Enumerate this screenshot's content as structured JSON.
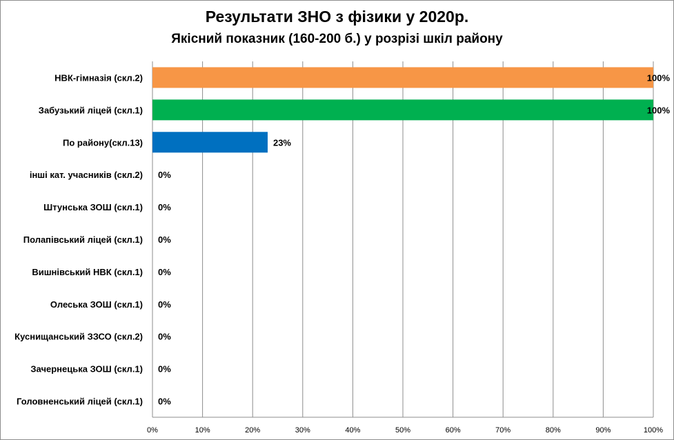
{
  "chart_data": {
    "type": "bar",
    "orientation": "horizontal",
    "title": "Результати  ЗНО з фізики у 2020р.",
    "subtitle": "Якісний показник (160-200  б.) у розрізі шкіл району",
    "categories": [
      "НВК-гімназія (скл.2)",
      "Забузький ліцей (скл.1)",
      "По району(скл.13)",
      "інші кат.  учасників (скл.2)",
      "Штунська ЗОШ (скл.1)",
      "Полапівський ліцей (скл.1)",
      "Вишнівський НВК (скл.1)",
      "Олеська ЗОШ (скл.1)",
      "Куснищанський ЗЗСО (скл.2)",
      "Зачернецька ЗОШ (скл.1)",
      "Головненський ліцей (скл.1)"
    ],
    "values": [
      100,
      100,
      23,
      0,
      0,
      0,
      0,
      0,
      0,
      0,
      0
    ],
    "value_labels": [
      "100%",
      "100%",
      "23%",
      "0%",
      "0%",
      "0%",
      "0%",
      "0%",
      "0%",
      "0%",
      "0%"
    ],
    "bar_colors": [
      "#F79646",
      "#00B050",
      "#0070C0",
      "#4F81BD",
      "#4F81BD",
      "#4F81BD",
      "#4F81BD",
      "#4F81BD",
      "#4F81BD",
      "#4F81BD",
      "#4F81BD"
    ],
    "xlim": [
      0,
      100
    ],
    "x_ticks": [
      "0%",
      "10%",
      "20%",
      "30%",
      "40%",
      "50%",
      "60%",
      "70%",
      "80%",
      "90%",
      "100%"
    ],
    "grid": "vertical",
    "legend": "none"
  }
}
